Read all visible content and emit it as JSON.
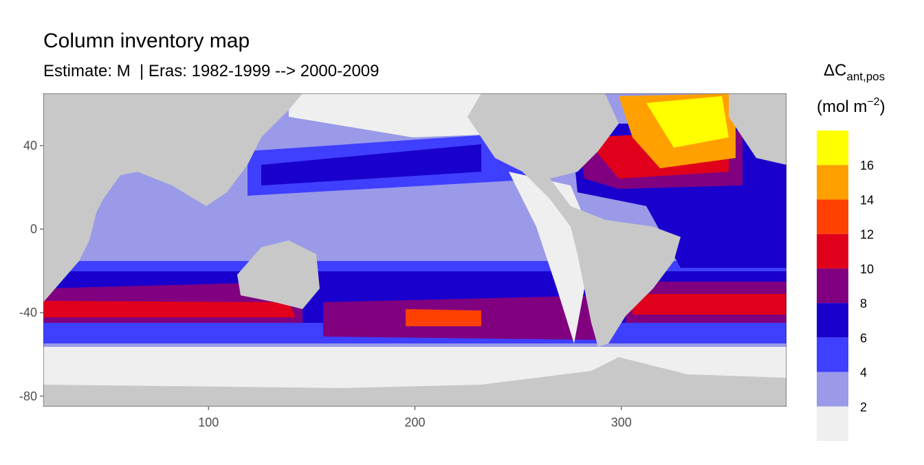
{
  "chart_data": {
    "type": "map",
    "title": "Column inventory map",
    "subtitle": "Estimate: M  | Eras: 1982-1999 --> 2000-2009",
    "xlim": [
      20,
      380
    ],
    "xticks": [
      100,
      200,
      300
    ],
    "ylim": [
      -85,
      65
    ],
    "yticks": [
      40,
      0,
      -40,
      -80
    ],
    "legend": {
      "title_main": "ΔC",
      "title_sub": "ant,pos",
      "unit_main": "(mol m",
      "unit_sup": "−2",
      "unit_close": ")",
      "breaks": [
        2,
        4,
        6,
        8,
        10,
        12,
        14,
        16
      ],
      "colors": [
        "#efefef",
        "#9a9ae8",
        "#3f3fff",
        "#1a00cc",
        "#800080",
        "#e0001c",
        "#ff4000",
        "#ffa000",
        "#ffff00"
      ]
    }
  }
}
